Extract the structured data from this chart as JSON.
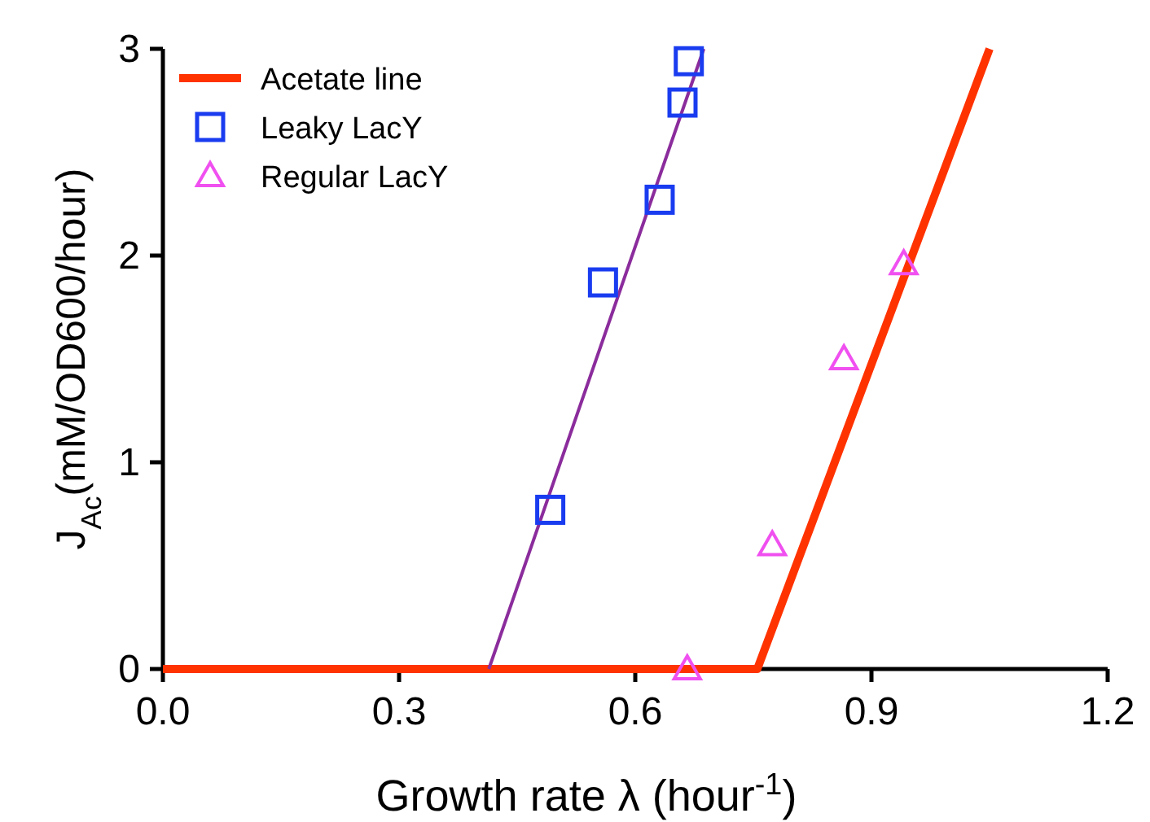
{
  "chart_data": {
    "type": "line",
    "xlabel": "Growth rate λ (hour$^{-1}$)",
    "ylabel": "J$_{Ac}$(mM/OD600/hour)",
    "xlim": [
      0,
      1.2
    ],
    "ylim": [
      0,
      3
    ],
    "xticks": [
      {
        "value": 0,
        "label": "0.0"
      },
      0.3,
      0.6,
      0.9,
      1.2
    ],
    "yticks": [
      0,
      1,
      2,
      3
    ],
    "grid": false,
    "legend": "top left",
    "line_style": "solid",
    "series": [
      {
        "name": "Acetate line",
        "color": "#ff3300",
        "marker": "none",
        "x": [
          0,
          0.755,
          1.05
        ],
        "values": [
          0,
          0,
          3
        ]
      },
      {
        "color": "#8b2c9c",
        "marker": "none",
        "x": [
          0.414,
          0.687
        ],
        "values": [
          0,
          3
        ]
      },
      {
        "name": "Leaky LacY",
        "type": "scatter",
        "color": "#1a3cf0",
        "marker": "square",
        "x": [
          0.492,
          0.559,
          0.631,
          0.66,
          0.668
        ],
        "values": [
          0.77,
          1.87,
          2.27,
          2.74,
          2.94
        ]
      },
      {
        "name": "Regular LacY",
        "type": "scatter",
        "color": "#f050f0",
        "marker": "triangle",
        "x": [
          0.666,
          0.774,
          0.865,
          0.941
        ],
        "values": [
          0,
          0.6,
          1.5,
          1.96
        ]
      }
    ]
  }
}
